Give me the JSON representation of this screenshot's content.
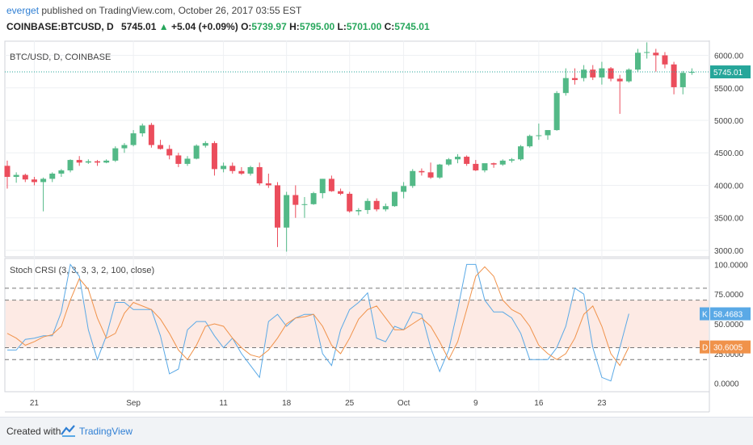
{
  "header": {
    "user": "everget",
    "published": "published on TradingView.com, October 26, 2017 03:55 EST",
    "symbol": "COINBASE:BTCUSD, D",
    "last": "5745.01",
    "change_arrow": "▲",
    "change": "+5.04 (+0.09%)",
    "o_label": "O:",
    "o": "5739.97",
    "h_label": "H:",
    "h": "5795.00",
    "l_label": "L:",
    "l": "5701.00",
    "c_label": "C:",
    "c": "5745.01"
  },
  "footer": {
    "created": "Created with",
    "brand": "TradingView"
  },
  "colors": {
    "up": "#53b987",
    "down": "#eb4d5c",
    "k_line": "#5aa9e6",
    "d_line": "#f0924a",
    "band": "#fdeae4",
    "price_line": "#26a69a"
  },
  "chart_data": [
    {
      "type": "candlestick",
      "title": "BTC/USD, D, COINBASE",
      "y_ticks": [
        3000,
        3500,
        4000,
        4500,
        5000,
        5500,
        6000
      ],
      "ylim": [
        2900,
        6230
      ],
      "last_price": 5745.01,
      "last_price_label": "5745.01",
      "x_ticks": [
        {
          "label": "21",
          "i": 3
        },
        {
          "label": "Sep",
          "i": 14
        },
        {
          "label": "11",
          "i": 24
        },
        {
          "label": "18",
          "i": 31
        },
        {
          "label": "25",
          "i": 38
        },
        {
          "label": "Oct",
          "i": 44
        },
        {
          "label": "9",
          "i": 52
        },
        {
          "label": "16",
          "i": 59
        },
        {
          "label": "23",
          "i": 66
        }
      ],
      "candles": [
        [
          4300,
          4380,
          3950,
          4130
        ],
        [
          4130,
          4200,
          4040,
          4160
        ],
        [
          4160,
          4180,
          4050,
          4090
        ],
        [
          4090,
          4130,
          4000,
          4050
        ],
        [
          4050,
          4120,
          3600,
          4100
        ],
        [
          4100,
          4200,
          4050,
          4180
        ],
        [
          4180,
          4250,
          4130,
          4230
        ],
        [
          4230,
          4400,
          4200,
          4390
        ],
        [
          4390,
          4450,
          4300,
          4350
        ],
        [
          4350,
          4400,
          4330,
          4370
        ],
        [
          4370,
          4390,
          4300,
          4350
        ],
        [
          4350,
          4400,
          4340,
          4380
        ],
        [
          4380,
          4600,
          4360,
          4570
        ],
        [
          4570,
          4650,
          4500,
          4620
        ],
        [
          4620,
          4850,
          4600,
          4800
        ],
        [
          4800,
          4950,
          4750,
          4920
        ],
        [
          4930,
          4960,
          4580,
          4620
        ],
        [
          4620,
          4700,
          4550,
          4560
        ],
        [
          4560,
          4620,
          4400,
          4460
        ],
        [
          4460,
          4500,
          4280,
          4330
        ],
        [
          4330,
          4450,
          4300,
          4410
        ],
        [
          4410,
          4630,
          4400,
          4610
        ],
        [
          4610,
          4680,
          4580,
          4650
        ],
        [
          4650,
          4680,
          4150,
          4250
        ],
        [
          4250,
          4350,
          4200,
          4300
        ],
        [
          4300,
          4350,
          4180,
          4220
        ],
        [
          4220,
          4280,
          4160,
          4180
        ],
        [
          4180,
          4300,
          4150,
          4280
        ],
        [
          4280,
          4350,
          4000,
          4030
        ],
        [
          4030,
          4180,
          3960,
          4000
        ],
        [
          4000,
          4050,
          3050,
          3350
        ],
        [
          3350,
          3900,
          2980,
          3850
        ],
        [
          3850,
          4000,
          3500,
          3700
        ],
        [
          3700,
          3820,
          3500,
          3710
        ],
        [
          3710,
          3900,
          3700,
          3880
        ],
        [
          3880,
          4100,
          3800,
          4100
        ],
        [
          4100,
          4150,
          3900,
          3910
        ],
        [
          3910,
          3950,
          3850,
          3870
        ],
        [
          3870,
          3900,
          3580,
          3600
        ],
        [
          3600,
          3650,
          3540,
          3620
        ],
        [
          3620,
          3800,
          3560,
          3760
        ],
        [
          3760,
          3800,
          3600,
          3630
        ],
        [
          3630,
          3720,
          3600,
          3680
        ],
        [
          3680,
          3900,
          3670,
          3900
        ],
        [
          3900,
          4050,
          3800,
          3990
        ],
        [
          3990,
          4250,
          3960,
          4220
        ],
        [
          4220,
          4260,
          4150,
          4200
        ],
        [
          4200,
          4350,
          4100,
          4120
        ],
        [
          4120,
          4330,
          4100,
          4320
        ],
        [
          4320,
          4420,
          4300,
          4400
        ],
        [
          4400,
          4480,
          4340,
          4440
        ],
        [
          4440,
          4460,
          4300,
          4330
        ],
        [
          4330,
          4390,
          4220,
          4230
        ],
        [
          4230,
          4330,
          4200,
          4340
        ],
        [
          4340,
          4350,
          4270,
          4320
        ],
        [
          4320,
          4400,
          4300,
          4380
        ],
        [
          4380,
          4420,
          4350,
          4400
        ],
        [
          4400,
          4620,
          4380,
          4600
        ],
        [
          4600,
          4780,
          4580,
          4760
        ],
        [
          4760,
          4950,
          4700,
          4770
        ],
        [
          4770,
          4850,
          4700,
          4850
        ],
        [
          4850,
          5450,
          4840,
          5420
        ],
        [
          5420,
          5800,
          5380,
          5650
        ],
        [
          5650,
          5800,
          5550,
          5620
        ],
        [
          5650,
          5850,
          5600,
          5780
        ],
        [
          5780,
          5850,
          5620,
          5660
        ],
        [
          5660,
          5900,
          5550,
          5800
        ],
        [
          5800,
          5820,
          5600,
          5640
        ],
        [
          5640,
          5700,
          5100,
          5600
        ],
        [
          5600,
          5800,
          5580,
          5780
        ],
        [
          5780,
          6100,
          5750,
          6040
        ],
        [
          6040,
          6200,
          5950,
          6050
        ],
        [
          6040,
          6100,
          5750,
          6000
        ],
        [
          6000,
          6050,
          5800,
          5860
        ],
        [
          5860,
          5900,
          5400,
          5510
        ],
        [
          5510,
          5760,
          5400,
          5730
        ],
        [
          5740,
          5800,
          5700,
          5745
        ]
      ]
    },
    {
      "type": "line",
      "title": "Stoch CRSI (3, 3, 3, 3, 2, 100, close)",
      "y_ticks": [
        0,
        25,
        50,
        75,
        100
      ],
      "y_tick_labels": [
        "0.0000",
        "25.0000",
        "50.0000",
        "75.0000",
        "100.0000"
      ],
      "ylim": [
        -7,
        105
      ],
      "bands": [
        80,
        70,
        30,
        20
      ],
      "series": [
        {
          "name": "K",
          "last": "58.4683",
          "values": [
            28,
            28,
            37,
            38,
            40,
            40,
            60,
            100,
            90,
            45,
            20,
            40,
            68,
            68,
            62,
            62,
            62,
            40,
            8,
            12,
            45,
            52,
            52,
            40,
            30,
            38,
            25,
            15,
            5,
            52,
            58,
            48,
            55,
            58,
            58,
            25,
            15,
            45,
            62,
            68,
            76,
            38,
            35,
            48,
            45,
            60,
            58,
            30,
            10,
            28,
            62,
            100,
            100,
            70,
            60,
            60,
            55,
            42,
            20,
            20,
            20,
            30,
            48,
            80,
            75,
            30,
            5,
            2,
            30,
            58.47
          ]
        },
        {
          "name": "D",
          "last": "30.6005",
          "values": [
            42,
            38,
            32,
            35,
            39,
            41,
            48,
            70,
            88,
            79,
            55,
            38,
            42,
            59,
            68,
            65,
            62,
            54,
            42,
            28,
            20,
            32,
            48,
            50,
            48,
            38,
            30,
            24,
            22,
            28,
            38,
            50,
            55,
            56,
            58,
            48,
            32,
            25,
            38,
            54,
            62,
            65,
            55,
            45,
            45,
            50,
            55,
            48,
            35,
            20,
            35,
            62,
            90,
            98,
            90,
            70,
            62,
            58,
            48,
            32,
            25,
            20,
            25,
            38,
            58,
            65,
            48,
            25,
            15,
            30.6
          ]
        }
      ]
    }
  ]
}
